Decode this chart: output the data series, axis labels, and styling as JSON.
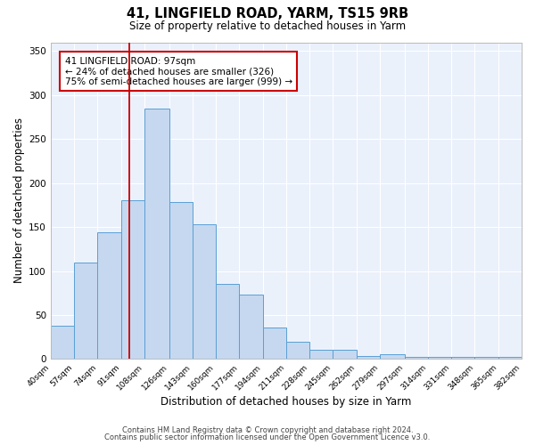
{
  "title": "41, LINGFIELD ROAD, YARM, TS15 9RB",
  "subtitle": "Size of property relative to detached houses in Yarm",
  "xlabel": "Distribution of detached houses by size in Yarm",
  "ylabel": "Number of detached properties",
  "bar_color": "#c5d8f0",
  "bar_edge_color": "#5a9fd4",
  "background_color": "#eaf1fb",
  "grid_color": "#ffffff",
  "bin_labels": [
    "40sqm",
    "57sqm",
    "74sqm",
    "91sqm",
    "108sqm",
    "126sqm",
    "143sqm",
    "160sqm",
    "177sqm",
    "194sqm",
    "211sqm",
    "228sqm",
    "245sqm",
    "262sqm",
    "279sqm",
    "297sqm",
    "314sqm",
    "331sqm",
    "348sqm",
    "365sqm",
    "382sqm"
  ],
  "bar_heights": [
    38,
    110,
    144,
    180,
    285,
    178,
    153,
    85,
    73,
    36,
    20,
    11,
    11,
    3,
    5,
    2,
    2,
    2,
    2,
    2
  ],
  "bin_edges": [
    40,
    57,
    74,
    91,
    108,
    126,
    143,
    160,
    177,
    194,
    211,
    228,
    245,
    262,
    279,
    297,
    314,
    331,
    348,
    365,
    382
  ],
  "vline_x": 97,
  "vline_color": "#cc0000",
  "annotation_text": "41 LINGFIELD ROAD: 97sqm\n← 24% of detached houses are smaller (326)\n75% of semi-detached houses are larger (999) →",
  "annotation_box_color": "#cc0000",
  "ylim": [
    0,
    360
  ],
  "yticks": [
    0,
    50,
    100,
    150,
    200,
    250,
    300,
    350
  ],
  "footer_line1": "Contains HM Land Registry data © Crown copyright and database right 2024.",
  "footer_line2": "Contains public sector information licensed under the Open Government Licence v3.0."
}
